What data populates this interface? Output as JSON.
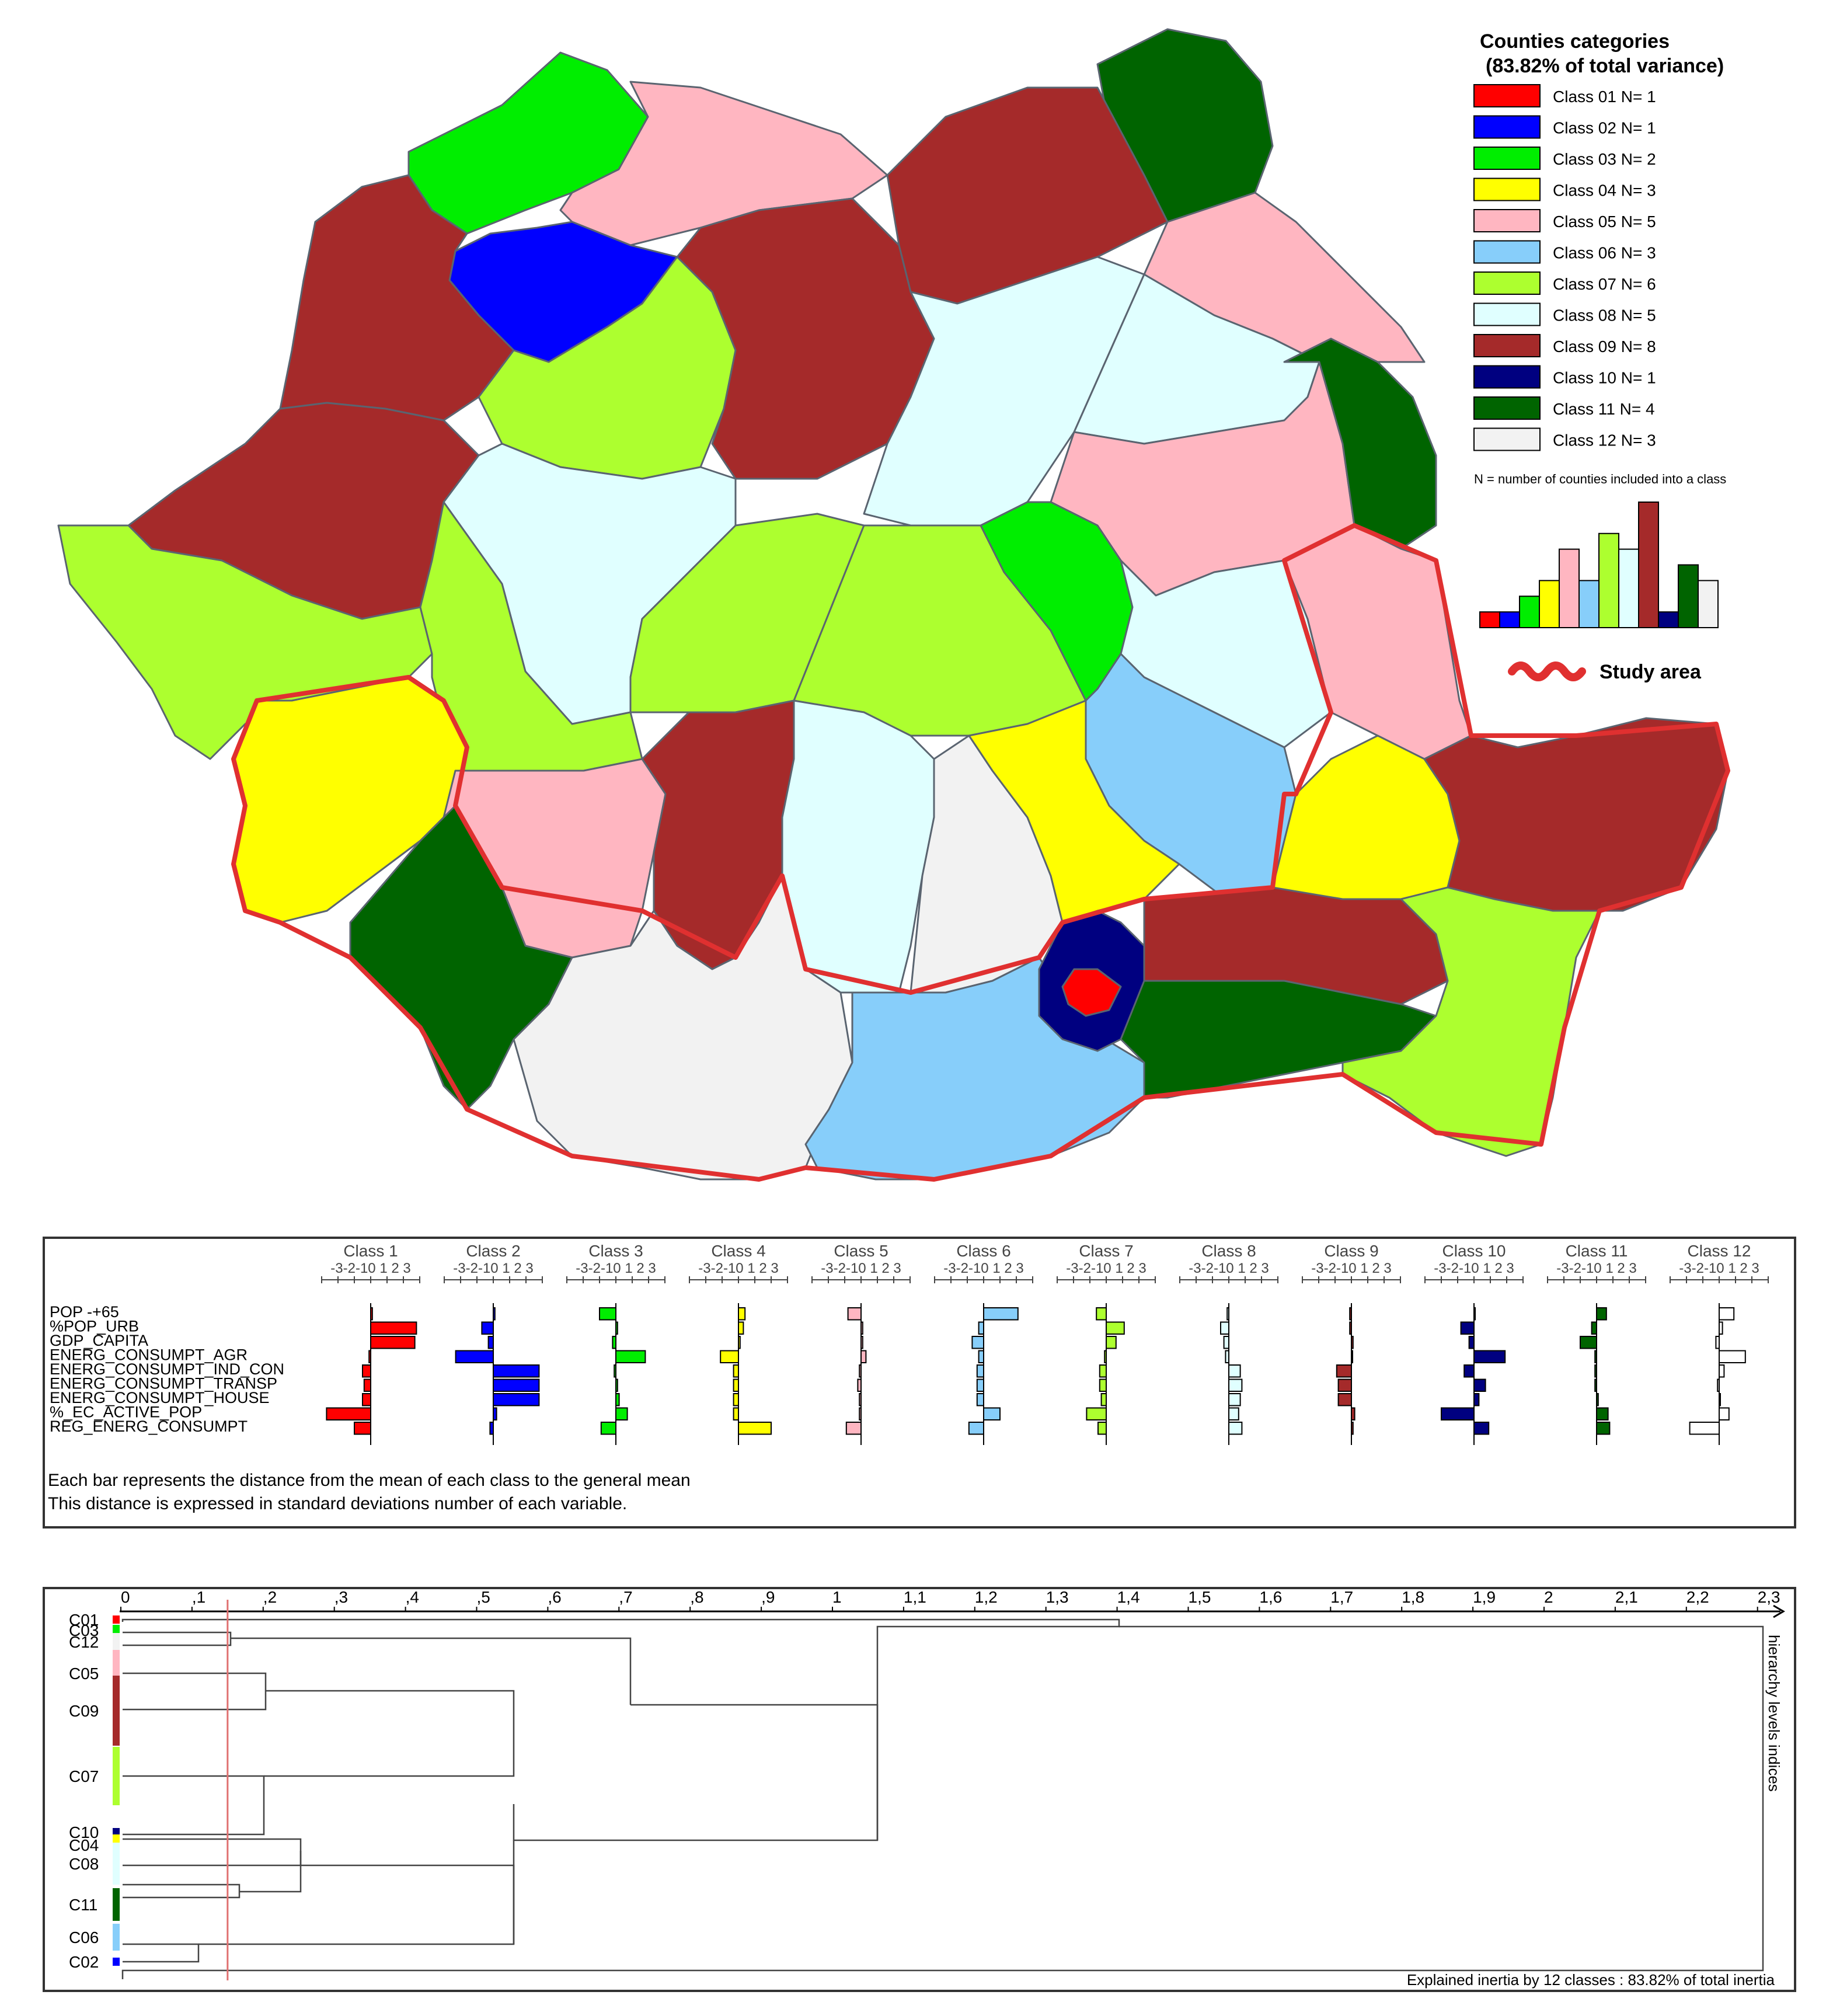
{
  "legend": {
    "title_line1": "Counties categories",
    "title_line2": "(83.82% of total variance)",
    "classes": [
      {
        "label": "Class 01 N= 1",
        "color": "#ff0000",
        "n": 1
      },
      {
        "label": "Class 02 N= 1",
        "color": "#0000ff",
        "n": 1
      },
      {
        "label": "Class 03 N= 2",
        "color": "#00ee00",
        "n": 2
      },
      {
        "label": "Class 04 N= 3",
        "color": "#ffff00",
        "n": 3
      },
      {
        "label": "Class 05 N= 5",
        "color": "#ffb6c1",
        "n": 5
      },
      {
        "label": "Class 06 N= 3",
        "color": "#87cefa",
        "n": 3
      },
      {
        "label": "Class 07 N= 6",
        "color": "#adff2f",
        "n": 6
      },
      {
        "label": "Class 08 N= 5",
        "color": "#e0ffff",
        "n": 5
      },
      {
        "label": "Class 09 N= 8",
        "color": "#a52a2a",
        "n": 8
      },
      {
        "label": "Class 10 N= 1",
        "color": "#000080",
        "n": 1
      },
      {
        "label": "Class 11 N= 4",
        "color": "#006400",
        "n": 4
      },
      {
        "label": "Class 12 N= 3",
        "color": "#f2f2f2",
        "n": 3
      }
    ],
    "note": "N = number of counties included into a class",
    "study_area_label": "Study area",
    "study_area_color": "#e03030"
  },
  "profiles": {
    "variables": [
      "POP -+65",
      "%POP_URB",
      "GDP_CAPITA",
      "ENERG_CONSUMPT_AGR",
      "ENERG_CONSUMPT_IND_CON",
      "ENERG_CONSUMPT_TRANSP",
      "ENERG_CONSUMPT_HOUSE",
      "%_EC_ACTIVE_POP",
      "REG_ENERG_CONSUMPT"
    ],
    "axis_ticks": "-3-2-10 1 2 3",
    "classes": [
      {
        "name": "Class 1",
        "color": "#ff0000",
        "values": [
          0.1,
          2.8,
          2.7,
          -0.1,
          -0.5,
          -0.4,
          -0.5,
          -2.7,
          -1.0
        ]
      },
      {
        "name": "Class 2",
        "color": "#0000ff",
        "values": [
          0.1,
          -0.7,
          -0.3,
          -2.3,
          2.8,
          2.8,
          2.8,
          0.2,
          -0.2
        ]
      },
      {
        "name": "Class 3",
        "color": "#00ee00",
        "values": [
          -1.0,
          0.1,
          -0.2,
          1.8,
          -0.1,
          0.1,
          0.2,
          0.7,
          -0.9
        ]
      },
      {
        "name": "Class 4",
        "color": "#ffff00",
        "values": [
          0.4,
          0.3,
          0.1,
          -1.1,
          -0.3,
          -0.3,
          -0.3,
          -0.3,
          2.0
        ]
      },
      {
        "name": "Class 5",
        "color": "#ffb6c1",
        "values": [
          -0.8,
          0.1,
          0.1,
          0.3,
          -0.1,
          -0.2,
          -0.1,
          -0.1,
          -0.9
        ]
      },
      {
        "name": "Class 6",
        "color": "#87cefa",
        "values": [
          2.1,
          -0.3,
          -0.7,
          -0.3,
          -0.4,
          -0.4,
          -0.4,
          1.0,
          -0.9
        ]
      },
      {
        "name": "Class 7",
        "color": "#adff2f",
        "values": [
          -0.6,
          1.1,
          0.6,
          -0.1,
          -0.4,
          -0.4,
          -0.3,
          -1.2,
          -0.5
        ]
      },
      {
        "name": "Class 8",
        "color": "#e0ffff",
        "values": [
          -0.1,
          -0.5,
          -0.3,
          -0.2,
          0.7,
          0.8,
          0.7,
          0.6,
          0.8
        ]
      },
      {
        "name": "Class 9",
        "color": "#a52a2a",
        "values": [
          -0.1,
          -0.1,
          0.1,
          0.0,
          -0.9,
          -0.8,
          -0.8,
          0.2,
          0.1
        ]
      },
      {
        "name": "Class 10",
        "color": "#000080",
        "values": [
          0.0,
          -0.8,
          -0.3,
          1.9,
          -0.6,
          0.7,
          0.3,
          -2.0,
          0.9
        ]
      },
      {
        "name": "Class 11",
        "color": "#006400",
        "values": [
          0.6,
          -0.3,
          -1.0,
          -0.1,
          -0.1,
          -0.1,
          0.1,
          0.7,
          0.8
        ]
      },
      {
        "name": "Class 12",
        "color": "#ffffff",
        "values": [
          0.9,
          0.2,
          -0.2,
          1.6,
          0.3,
          -0.1,
          0.0,
          0.6,
          -1.8
        ]
      }
    ],
    "note_line1": "Each bar represents the distance from the mean of each class to the general mean",
    "note_line2": "This distance is expressed in standard deviations number of each variable."
  },
  "dendrogram": {
    "axis_ticks": [
      {
        "label": "0",
        "v": 0.0
      },
      {
        "label": ",1",
        "v": 0.1
      },
      {
        "label": ",2",
        "v": 0.2
      },
      {
        "label": ",3",
        "v": 0.3
      },
      {
        "label": ",4",
        "v": 0.4
      },
      {
        "label": ",5",
        "v": 0.5
      },
      {
        "label": ",6",
        "v": 0.6
      },
      {
        "label": ",7",
        "v": 0.7
      },
      {
        "label": ",8",
        "v": 0.8
      },
      {
        "label": ",9",
        "v": 0.9
      },
      {
        "label": "1",
        "v": 1.0
      },
      {
        "label": "1,1",
        "v": 1.1
      },
      {
        "label": "1,2",
        "v": 1.2
      },
      {
        "label": "1,3",
        "v": 1.3
      },
      {
        "label": "1,4",
        "v": 1.4
      },
      {
        "label": "1,5",
        "v": 1.5
      },
      {
        "label": "1,6",
        "v": 1.6
      },
      {
        "label": "1,7",
        "v": 1.7
      },
      {
        "label": "1,8",
        "v": 1.8
      },
      {
        "label": "1,9",
        "v": 1.9
      },
      {
        "label": "2",
        "v": 2.0
      },
      {
        "label": "2,1",
        "v": 2.1
      },
      {
        "label": "2,2",
        "v": 2.2
      },
      {
        "label": "2,3",
        "v": 2.3
      }
    ],
    "leaves": [
      {
        "label": "C01",
        "color": "#ff0000"
      },
      {
        "label": "C03",
        "color": "#00ee00"
      },
      {
        "label": "C12",
        "color": "#f2f2f2"
      },
      {
        "label": "C05",
        "color": "#ffb6c1"
      },
      {
        "label": "C09",
        "color": "#a52a2a"
      },
      {
        "label": "C07",
        "color": "#adff2f"
      },
      {
        "label": "C10",
        "color": "#000080"
      },
      {
        "label": "C04",
        "color": "#ffff00"
      },
      {
        "label": "C08",
        "color": "#e0ffff"
      },
      {
        "label": "C11",
        "color": "#006400"
      },
      {
        "label": "C06",
        "color": "#87cefa"
      },
      {
        "label": "C02",
        "color": "#0000ff"
      }
    ],
    "cut_level": 0.15,
    "side_label": "hierarchy levels indices",
    "footer": "Explained inertia by 12 classes : 83.82% of total inertia"
  }
}
